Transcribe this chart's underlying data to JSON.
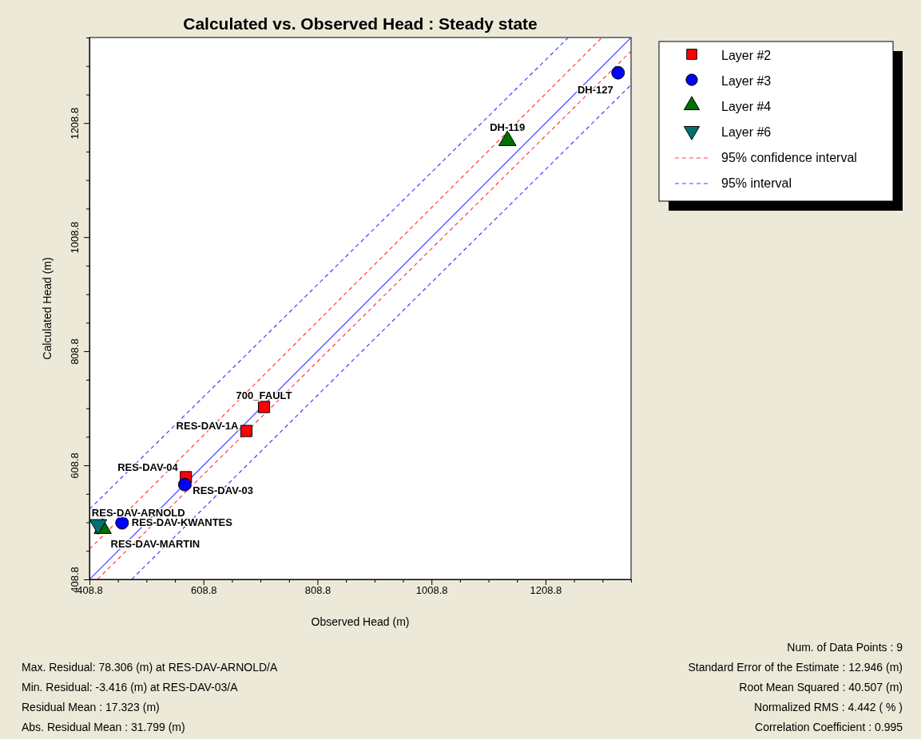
{
  "chart_data": {
    "type": "scatter",
    "title": "Calculated vs. Observed Head : Steady state",
    "xlabel": "Observed Head (m)",
    "ylabel": "Calculated Head (m)",
    "xlim": [
      408.8,
      1358.8
    ],
    "ylim": [
      408.8,
      1358.8
    ],
    "xticks": [
      408.8,
      {
        "value": 458.8,
        "label": null
      },
      {
        "value": 508.8,
        "label": null
      },
      {
        "value": 558.8,
        "label": null
      },
      608.8,
      {
        "value": 658.8,
        "label": null
      },
      {
        "value": 708.8,
        "label": null
      },
      {
        "value": 758.8,
        "label": null
      },
      808.8,
      {
        "value": 858.8,
        "label": null
      },
      {
        "value": 908.8,
        "label": null
      },
      {
        "value": 958.8,
        "label": null
      },
      1008.8,
      {
        "value": 1058.8,
        "label": null
      },
      {
        "value": 1108.8,
        "label": null
      },
      {
        "value": 1158.8,
        "label": null
      },
      1208.8,
      {
        "value": 1258.8,
        "label": null
      },
      {
        "value": 1308.8,
        "label": null
      },
      {
        "value": 1358.8,
        "label": null
      }
    ],
    "yticks": [
      408.8,
      {
        "value": 458.8,
        "label": null
      },
      {
        "value": 508.8,
        "label": null
      },
      {
        "value": 558.8,
        "label": null
      },
      608.8,
      {
        "value": 658.8,
        "label": null
      },
      {
        "value": 708.8,
        "label": null
      },
      {
        "value": 758.8,
        "label": null
      },
      808.8,
      {
        "value": 858.8,
        "label": null
      },
      {
        "value": 908.8,
        "label": null
      },
      {
        "value": 958.8,
        "label": null
      },
      1008.8,
      {
        "value": 1058.8,
        "label": null
      },
      {
        "value": 1108.8,
        "label": null
      },
      {
        "value": 1158.8,
        "label": null
      },
      1208.8,
      {
        "value": 1258.8,
        "label": null
      },
      {
        "value": 1308.8,
        "label": null
      },
      {
        "value": 1358.8,
        "label": null
      }
    ],
    "grid": false,
    "legend": "top right",
    "series": [
      {
        "name": "Layer #2",
        "marker": "square",
        "color": "#ff0000",
        "x": [
          715,
          684,
          578
        ],
        "values": [
          711,
          669,
          588
        ]
      },
      {
        "name": "Layer #3",
        "marker": "circle",
        "color": "#0000ff",
        "x": [
          576,
          466,
          1336
        ],
        "values": [
          575,
          508,
          1297
        ]
      },
      {
        "name": "Layer #4",
        "marker": "triangle",
        "color": "#007000",
        "x": [
          1142,
          432
        ],
        "values": [
          1178,
          498
        ]
      },
      {
        "name": "Layer #6",
        "marker": "triangle-down",
        "color": "#007070",
        "x": [
          424
        ],
        "values": [
          505
        ]
      },
      {
        "name": "95% confidence interval",
        "type": "line",
        "line_style": "dashed",
        "color": "#ff4040",
        "x": [
          409,
          1307
        ],
        "values": [
          462,
          1358
        ]
      },
      {
        "type": "line",
        "line_style": "dashed",
        "color": "#ff4040",
        "x": [
          423,
          1358
        ],
        "values": [
          409,
          1334
        ]
      },
      {
        "name": "95% interval",
        "type": "line",
        "line_style": "dashed",
        "color": "#4040ff",
        "x": [
          409,
          1248
        ],
        "values": [
          532,
          1358
        ]
      },
      {
        "type": "line",
        "line_style": "dashed",
        "color": "#4040ff",
        "x": [
          483,
          1358
        ],
        "values": [
          409,
          1275
        ]
      },
      {
        "type": "line",
        "line_style": "solid",
        "color": "#4040ff",
        "x": [
          409,
          1358
        ],
        "values": [
          409,
          1358
        ]
      }
    ],
    "annotations": [
      {
        "text": "700_FAULT",
        "x": 715,
        "y": 711
      },
      {
        "text": "RES-DAV-1A",
        "x": 684,
        "y": 669
      },
      {
        "text": "RES-DAV-04",
        "x": 578,
        "y": 588
      },
      {
        "text": "RES-DAV-03",
        "x": 576,
        "y": 575
      },
      {
        "text": "RES-DAV-ARNOLD",
        "x": 424,
        "y": 505
      },
      {
        "text": "RES-DAV-KWANTES",
        "x": 466,
        "y": 508
      },
      {
        "text": "RES-DAV-MARTIN",
        "x": 432,
        "y": 498
      },
      {
        "text": "DH-119",
        "x": 1142,
        "y": 1178
      },
      {
        "text": "DH-127",
        "x": 1336,
        "y": 1297
      },
      "Max. Residual: 78.306 (m) at RES-DAV-ARNOLD/A",
      "Min. Residual: -3.416 (m) at RES-DAV-03/A",
      "Residual Mean : 17.323 (m)",
      "Abs. Residual Mean : 31.799 (m)",
      "Num. of Data Points : 9",
      "Standard Error of the Estimate : 12.946 (m)",
      "Root Mean Squared : 40.507 (m)",
      "Normalized RMS : 4.442 ( % )",
      "Correlation Coefficient : 0.995"
    ]
  }
}
